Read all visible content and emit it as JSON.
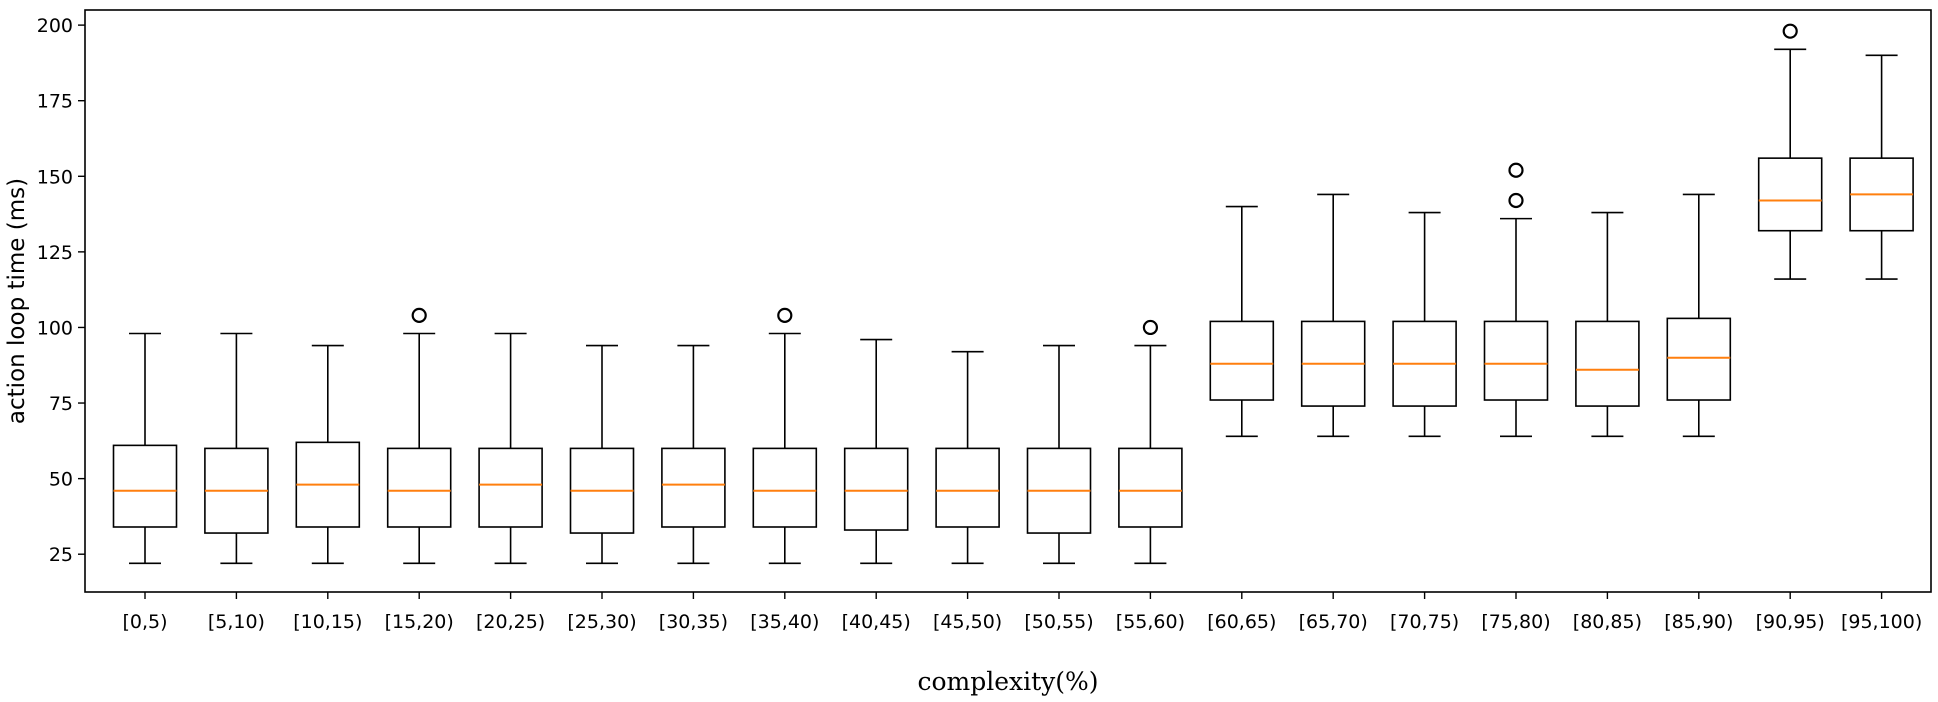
{
  "chart_data": {
    "type": "box",
    "title": "",
    "xlabel": "complexity(%)",
    "ylabel": "action loop time (ms)",
    "ylim": [
      12.5,
      205
    ],
    "yticks": [
      25,
      50,
      75,
      100,
      125,
      150,
      175,
      200
    ],
    "grid": false,
    "categories": [
      "[0,5)",
      "[5,10)",
      "[10,15)",
      "[15,20)",
      "[20,25)",
      "[25,30)",
      "[30,35)",
      "[35,40)",
      "[40,45)",
      "[45,50)",
      "[50,55)",
      "[55,60)",
      "[60,65)",
      "[65,70)",
      "[70,75)",
      "[75,80)",
      "[80,85)",
      "[85,90)",
      "[90,95)",
      "[95,100)"
    ],
    "boxes": [
      {
        "whisker_low": 22,
        "q1": 34,
        "median": 46,
        "q3": 61,
        "whisker_high": 98,
        "outliers": []
      },
      {
        "whisker_low": 22,
        "q1": 32,
        "median": 46,
        "q3": 60,
        "whisker_high": 98,
        "outliers": []
      },
      {
        "whisker_low": 22,
        "q1": 34,
        "median": 48,
        "q3": 62,
        "whisker_high": 94,
        "outliers": []
      },
      {
        "whisker_low": 22,
        "q1": 34,
        "median": 46,
        "q3": 60,
        "whisker_high": 98,
        "outliers": [
          104
        ]
      },
      {
        "whisker_low": 22,
        "q1": 34,
        "median": 48,
        "q3": 60,
        "whisker_high": 98,
        "outliers": []
      },
      {
        "whisker_low": 22,
        "q1": 32,
        "median": 46,
        "q3": 60,
        "whisker_high": 94,
        "outliers": []
      },
      {
        "whisker_low": 22,
        "q1": 34,
        "median": 48,
        "q3": 60,
        "whisker_high": 94,
        "outliers": []
      },
      {
        "whisker_low": 22,
        "q1": 34,
        "median": 46,
        "q3": 60,
        "whisker_high": 98,
        "outliers": [
          104
        ]
      },
      {
        "whisker_low": 22,
        "q1": 33,
        "median": 46,
        "q3": 60,
        "whisker_high": 96,
        "outliers": []
      },
      {
        "whisker_low": 22,
        "q1": 34,
        "median": 46,
        "q3": 60,
        "whisker_high": 92,
        "outliers": []
      },
      {
        "whisker_low": 22,
        "q1": 32,
        "median": 46,
        "q3": 60,
        "whisker_high": 94,
        "outliers": []
      },
      {
        "whisker_low": 22,
        "q1": 34,
        "median": 46,
        "q3": 60,
        "whisker_high": 94,
        "outliers": [
          100
        ]
      },
      {
        "whisker_low": 64,
        "q1": 76,
        "median": 88,
        "q3": 102,
        "whisker_high": 140,
        "outliers": []
      },
      {
        "whisker_low": 64,
        "q1": 74,
        "median": 88,
        "q3": 102,
        "whisker_high": 144,
        "outliers": []
      },
      {
        "whisker_low": 64,
        "q1": 74,
        "median": 88,
        "q3": 102,
        "whisker_high": 138,
        "outliers": []
      },
      {
        "whisker_low": 64,
        "q1": 76,
        "median": 88,
        "q3": 102,
        "whisker_high": 136,
        "outliers": [
          142,
          152
        ]
      },
      {
        "whisker_low": 64,
        "q1": 74,
        "median": 86,
        "q3": 102,
        "whisker_high": 138,
        "outliers": []
      },
      {
        "whisker_low": 64,
        "q1": 76,
        "median": 90,
        "q3": 103,
        "whisker_high": 144,
        "outliers": []
      },
      {
        "whisker_low": 116,
        "q1": 132,
        "median": 142,
        "q3": 156,
        "whisker_high": 192,
        "outliers": [
          198
        ]
      },
      {
        "whisker_low": 116,
        "q1": 132,
        "median": 144,
        "q3": 156,
        "whisker_high": 190,
        "outliers": []
      }
    ],
    "colors": {
      "box": "#000000",
      "median": "#ff7f0e",
      "outlier": "#000000",
      "axes": "#000000"
    }
  }
}
